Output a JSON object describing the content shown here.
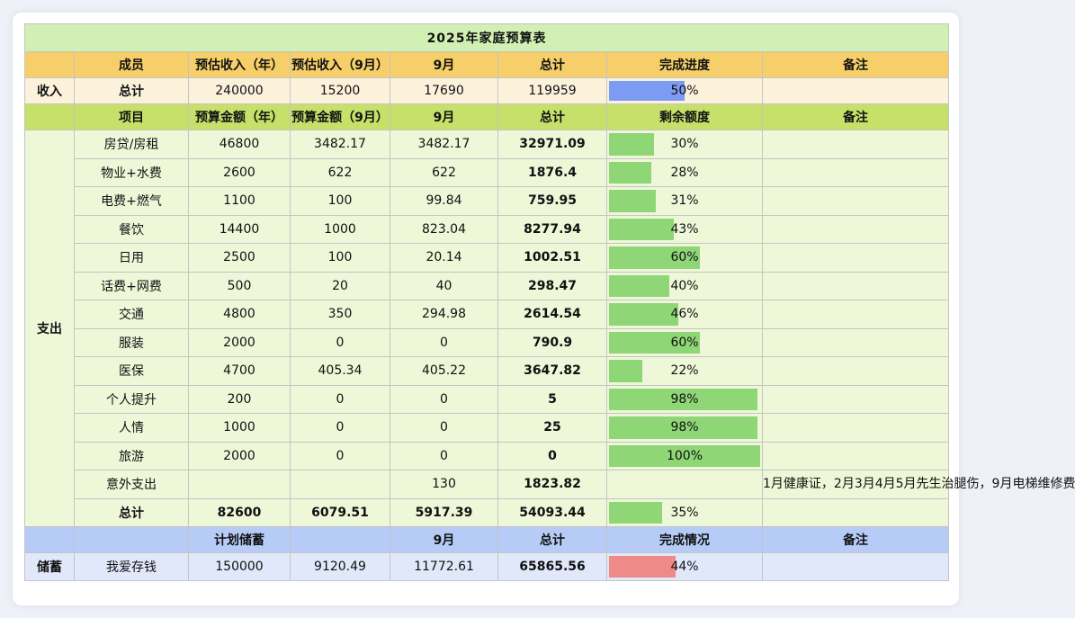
{
  "title": "2025年家庭预算表",
  "colors": {
    "income_bar": "#7b9cf2",
    "expense_bar": "#8fd676",
    "savings_bar": "#ee8a87"
  },
  "income": {
    "section": "收入",
    "headers": [
      "成员",
      "预估收入（年）",
      "预估收入（9月）",
      "9月",
      "总计",
      "完成进度",
      "备注"
    ],
    "row": {
      "name": "总计",
      "annual": "240000",
      "sep": "15200",
      "month": "17690",
      "total": "119959",
      "progress": "50%",
      "progress_value": 50,
      "note": ""
    }
  },
  "expense": {
    "section": "支出",
    "headers": [
      "项目",
      "预算金额（年）",
      "预算金额（9月）",
      "9月",
      "总计",
      "剩余额度",
      "备注"
    ],
    "rows": [
      {
        "name": "房贷/房租",
        "annual": "46800",
        "sep": "3482.17",
        "month": "3482.17",
        "total": "32971.09",
        "pct": "30%",
        "pct_value": 30
      },
      {
        "name": "物业+水费",
        "annual": "2600",
        "sep": "622",
        "month": "622",
        "total": "1876.4",
        "pct": "28%",
        "pct_value": 28
      },
      {
        "name": "电费+燃气",
        "annual": "1100",
        "sep": "100",
        "month": "99.84",
        "total": "759.95",
        "pct": "31%",
        "pct_value": 31
      },
      {
        "name": "餐饮",
        "annual": "14400",
        "sep": "1000",
        "month": "823.04",
        "total": "8277.94",
        "pct": "43%",
        "pct_value": 43
      },
      {
        "name": "日用",
        "annual": "2500",
        "sep": "100",
        "month": "20.14",
        "total": "1002.51",
        "pct": "60%",
        "pct_value": 60
      },
      {
        "name": "话费+网费",
        "annual": "500",
        "sep": "20",
        "month": "40",
        "total": "298.47",
        "pct": "40%",
        "pct_value": 40
      },
      {
        "name": "交通",
        "annual": "4800",
        "sep": "350",
        "month": "294.98",
        "total": "2614.54",
        "pct": "46%",
        "pct_value": 46
      },
      {
        "name": "服装",
        "annual": "2000",
        "sep": "0",
        "month": "0",
        "total": "790.9",
        "pct": "60%",
        "pct_value": 60
      },
      {
        "name": "医保",
        "annual": "4700",
        "sep": "405.34",
        "month": "405.22",
        "total": "3647.82",
        "pct": "22%",
        "pct_value": 22
      },
      {
        "name": "个人提升",
        "annual": "200",
        "sep": "0",
        "month": "0",
        "total": "5",
        "pct": "98%",
        "pct_value": 98
      },
      {
        "name": "人情",
        "annual": "1000",
        "sep": "0",
        "month": "0",
        "total": "25",
        "pct": "98%",
        "pct_value": 98
      },
      {
        "name": "旅游",
        "annual": "2000",
        "sep": "0",
        "month": "0",
        "total": "0",
        "pct": "100%",
        "pct_value": 100
      },
      {
        "name": "意外支出",
        "annual": "",
        "sep": "",
        "month": "130",
        "total": "1823.82",
        "pct": "",
        "pct_value": 0
      }
    ],
    "note": "1月健康证，2月3月4月5月先生治腿伤，9月电梯维修费",
    "total_row": {
      "name": "总计",
      "annual": "82600",
      "sep": "6079.51",
      "month": "5917.39",
      "total": "54093.44",
      "pct": "35%",
      "pct_value": 35
    }
  },
  "savings": {
    "section": "储蓄",
    "headers": [
      "",
      "计划储蓄",
      "",
      "9月",
      "总计",
      "完成情况",
      "备注"
    ],
    "row": {
      "name": "我爱存钱",
      "plan": "150000",
      "sep": "9120.49",
      "month": "11772.61",
      "total": "65865.56",
      "progress": "44%",
      "progress_value": 44
    }
  }
}
